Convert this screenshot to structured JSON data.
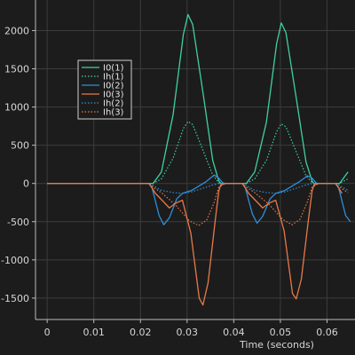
{
  "chart_data": {
    "type": "line",
    "xlabel": "Time (seconds)",
    "ylabel": "",
    "xlim": [
      -0.0025,
      0.066
    ],
    "ylim": [
      -1780,
      2400
    ],
    "grid": true,
    "legend_placement": "top-left",
    "x_ticks": [
      0,
      0.01,
      0.02,
      0.03,
      0.04,
      0.05,
      0.06
    ],
    "x_tick_labels": [
      "0",
      "0.01",
      "0.02",
      "0.03",
      "0.04",
      "0.05",
      "0.06"
    ],
    "y_ticks": [
      -1500,
      -1000,
      -500,
      0,
      500,
      1000,
      1500,
      2000
    ],
    "y_tick_labels": [
      "-1500",
      "-1000",
      "-500",
      "0",
      "500",
      "1000",
      "1500",
      "2000"
    ],
    "series": [
      {
        "name": "I0(1)",
        "color": "#3fd1a0",
        "dash": "solid",
        "x": [
          0,
          0.0218,
          0.0227,
          0.0245,
          0.027,
          0.0292,
          0.0302,
          0.0312,
          0.0335,
          0.0355,
          0.0368,
          0.0372,
          0.0382,
          0.0418,
          0.0427,
          0.0445,
          0.047,
          0.0492,
          0.0502,
          0.0512,
          0.0535,
          0.0555,
          0.0568,
          0.0572,
          0.0582,
          0.0618,
          0.0627,
          0.0645
        ],
        "y": [
          0,
          0,
          0,
          150,
          900,
          1950,
          2210,
          2080,
          1150,
          300,
          30,
          0,
          0,
          0,
          0,
          150,
          800,
          1830,
          2100,
          1970,
          1080,
          280,
          30,
          0,
          0,
          0,
          0,
          150
        ]
      },
      {
        "name": "Ih(1)",
        "color": "#3fd1a0",
        "dash": "dotted",
        "x": [
          0,
          0.0218,
          0.0227,
          0.0245,
          0.027,
          0.0292,
          0.0302,
          0.0312,
          0.0335,
          0.0355,
          0.0368,
          0.0372,
          0.0382,
          0.0418,
          0.0427,
          0.0445,
          0.047,
          0.0492,
          0.0502,
          0.0512,
          0.0535,
          0.0555,
          0.0568,
          0.0572,
          0.0582,
          0.0618,
          0.0627,
          0.0645
        ],
        "y": [
          0,
          0,
          0,
          60,
          330,
          720,
          810,
          770,
          420,
          110,
          10,
          0,
          0,
          0,
          0,
          60,
          300,
          680,
          780,
          740,
          400,
          100,
          10,
          0,
          0,
          0,
          0,
          60
        ]
      },
      {
        "name": "I0(2)",
        "color": "#2f8fd8",
        "dash": "solid",
        "x": [
          0,
          0.0218,
          0.0225,
          0.024,
          0.025,
          0.0262,
          0.0278,
          0.029,
          0.031,
          0.034,
          0.0358,
          0.0368,
          0.0376,
          0.0382,
          0.0418,
          0.0425,
          0.044,
          0.045,
          0.0462,
          0.0478,
          0.049,
          0.051,
          0.054,
          0.0558,
          0.0568,
          0.0576,
          0.0582,
          0.0618,
          0.0625,
          0.064,
          0.065
        ],
        "y": [
          0,
          0,
          -60,
          -420,
          -540,
          -450,
          -200,
          -130,
          -90,
          20,
          110,
          70,
          10,
          0,
          0,
          -60,
          -400,
          -520,
          -430,
          -200,
          -130,
          -90,
          20,
          100,
          70,
          10,
          0,
          0,
          -60,
          -420,
          -500
        ]
      },
      {
        "name": "I0(3)",
        "color": "#e8794a",
        "dash": "solid",
        "x": [
          0,
          0.0218,
          0.0222,
          0.0232,
          0.0248,
          0.0262,
          0.0275,
          0.029,
          0.0308,
          0.0326,
          0.0334,
          0.0345,
          0.036,
          0.0368,
          0.0372,
          0.0382,
          0.0418,
          0.0422,
          0.0432,
          0.0448,
          0.0462,
          0.0475,
          0.049,
          0.0508,
          0.0526,
          0.0534,
          0.0545,
          0.056,
          0.0568,
          0.0572,
          0.0582,
          0.0618,
          0.0622,
          0.0632
        ],
        "y": [
          0,
          0,
          -30,
          -130,
          -230,
          -320,
          -260,
          -220,
          -650,
          -1500,
          -1590,
          -1300,
          -500,
          -100,
          -20,
          0,
          0,
          -30,
          -130,
          -230,
          -320,
          -260,
          -220,
          -620,
          -1440,
          -1510,
          -1250,
          -480,
          -100,
          -20,
          0,
          0,
          -30,
          -130
        ]
      },
      {
        "name": "Ih(2)",
        "color": "#2f8fd8",
        "dash": "dotted",
        "x": [
          0,
          0.0218,
          0.0225,
          0.0245,
          0.027,
          0.0292,
          0.031,
          0.0335,
          0.0355,
          0.0368,
          0.0382,
          0.0418,
          0.0425,
          0.0445,
          0.047,
          0.0492,
          0.051,
          0.0535,
          0.0555,
          0.0568,
          0.0582,
          0.0618,
          0.0625,
          0.0645
        ],
        "y": [
          0,
          0,
          -20,
          -90,
          -120,
          -130,
          -110,
          -60,
          -20,
          0,
          0,
          0,
          -20,
          -90,
          -120,
          -130,
          -110,
          -60,
          -20,
          0,
          0,
          0,
          -20,
          -90
        ]
      },
      {
        "name": "Ih(3)",
        "color": "#e8794a",
        "dash": "dotted",
        "x": [
          0,
          0.0218,
          0.0225,
          0.0245,
          0.0275,
          0.0305,
          0.0325,
          0.0342,
          0.0358,
          0.0368,
          0.0382,
          0.0418,
          0.0425,
          0.0445,
          0.0475,
          0.0505,
          0.0525,
          0.0542,
          0.0558,
          0.0568,
          0.0582,
          0.0618,
          0.0625,
          0.0645
        ],
        "y": [
          0,
          0,
          -40,
          -120,
          -280,
          -490,
          -550,
          -480,
          -250,
          -50,
          0,
          0,
          -40,
          -120,
          -270,
          -470,
          -540,
          -470,
          -240,
          -50,
          0,
          0,
          -40,
          -120
        ]
      }
    ]
  }
}
